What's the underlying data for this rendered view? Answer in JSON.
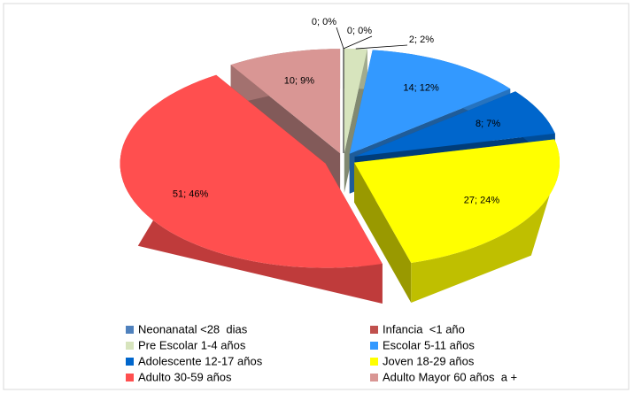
{
  "chart_data": {
    "type": "pie",
    "categories": [
      "Neonanatal <28  dias",
      "Infancia  <1 año",
      "Pre Escolar 1-4 años",
      "Escolar 5-11 años",
      "Adolescente 12-17 años",
      "Joven 18-29 años",
      "Adulto 30-59 años",
      "Adulto Mayor 60 años  a +"
    ],
    "values": [
      0,
      0,
      2,
      14,
      8,
      27,
      51,
      10
    ],
    "value_labels": [
      "0; 0%",
      "0; 0%",
      "2; 2%",
      "14; 12%",
      "8; 7%",
      "27; 24%",
      "51; 46%",
      "10; 9%"
    ],
    "colors": [
      "#4f81bd",
      "#c0504d",
      "#d7e4bd",
      "#3399ff",
      "#0066cc",
      "#ffff00",
      "#ff4f4f",
      "#d99694"
    ],
    "legend": "bottom"
  }
}
